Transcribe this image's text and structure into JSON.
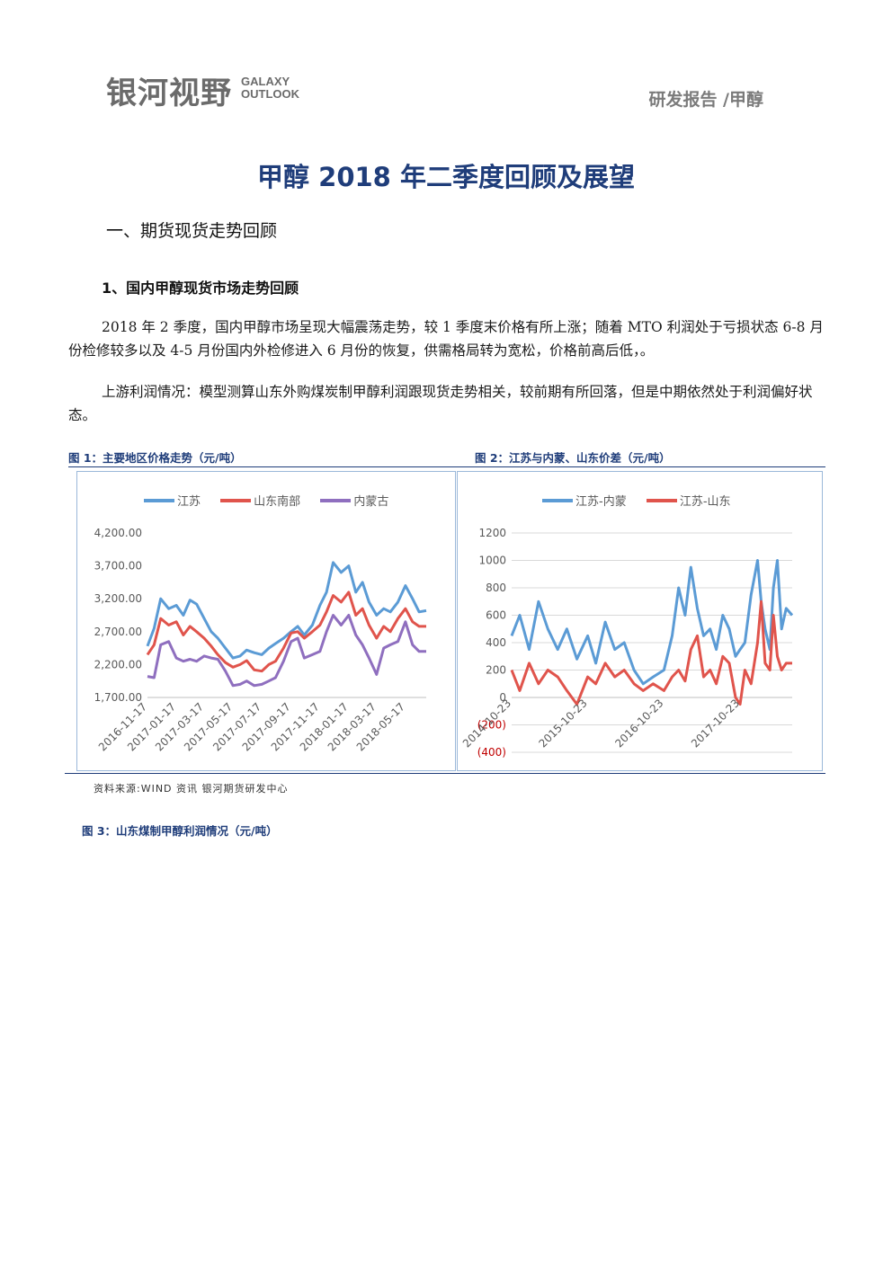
{
  "header": {
    "logo_cn": "银河视野",
    "logo_en_line1": "GALAXY",
    "logo_en_line2": "OUTLOOK",
    "section": "研发报告 /甲醇"
  },
  "title": "甲醇 2018 年二季度回顾及展望",
  "section_heading": "一、期货现货走势回顾",
  "subsection_heading": "1、国内甲醇现货市场走势回顾",
  "paragraphs": [
    "2018 年 2 季度，国内甲醇市场呈现大幅震荡走势，较 1 季度末价格有所上涨；随着 MTO 利润处于亏损状态 6-8 月份检修较多以及 4-5 月份国内外检修进入 6 月份的恢复，供需格局转为宽松，价格前高后低，。",
    "上游利润情况：模型测算山东外购煤炭制甲醇利润跟现货走势相关，较前期有所回落，但是中期依然处于利润偏好状态。"
  ],
  "figure1_caption": "图 1：主要地区价格走势（元/吨）",
  "figure2_caption": "图 2：江苏与内蒙、山东价差（元/吨）",
  "figure3_caption": "图 3：山东煤制甲醇利润情况（元/吨）",
  "source": "资料来源:WIND 资讯  银河期货研发中心",
  "chart_data": [
    {
      "type": "line",
      "ylim": [
        1700,
        4200
      ],
      "yticks": [
        "4,200.00",
        "3,700.00",
        "3,200.00",
        "2,700.00",
        "2,200.00",
        "1,700.00"
      ],
      "ytick_values": [
        4200,
        3700,
        3200,
        2700,
        2200,
        1700
      ],
      "xticks": [
        "2016-11-17",
        "2017-01-17",
        "2017-03-17",
        "2017-05-17",
        "2017-07-17",
        "2017-09-17",
        "2017-11-17",
        "2018-01-17",
        "2018-03-17",
        "2018-05-17"
      ],
      "x_range": [
        "2016-11-17",
        "2018-06-30"
      ],
      "series": [
        {
          "name": "江苏",
          "color": "#5b9bd5",
          "points": [
            [
              "2016-11-17",
              2480
            ],
            [
              "2016-12-01",
              2750
            ],
            [
              "2016-12-15",
              3200
            ],
            [
              "2017-01-01",
              3050
            ],
            [
              "2017-01-17",
              3100
            ],
            [
              "2017-02-01",
              2950
            ],
            [
              "2017-02-15",
              3180
            ],
            [
              "2017-03-01",
              3120
            ],
            [
              "2017-03-17",
              2900
            ],
            [
              "2017-04-01",
              2700
            ],
            [
              "2017-04-15",
              2600
            ],
            [
              "2017-05-01",
              2450
            ],
            [
              "2017-05-17",
              2300
            ],
            [
              "2017-06-01",
              2330
            ],
            [
              "2017-06-15",
              2420
            ],
            [
              "2017-07-01",
              2380
            ],
            [
              "2017-07-17",
              2350
            ],
            [
              "2017-08-01",
              2450
            ],
            [
              "2017-08-15",
              2520
            ],
            [
              "2017-09-01",
              2600
            ],
            [
              "2017-09-17",
              2700
            ],
            [
              "2017-10-01",
              2780
            ],
            [
              "2017-10-15",
              2650
            ],
            [
              "2017-11-01",
              2800
            ],
            [
              "2017-11-17",
              3100
            ],
            [
              "2017-12-01",
              3300
            ],
            [
              "2017-12-15",
              3750
            ],
            [
              "2018-01-01",
              3600
            ],
            [
              "2018-01-17",
              3700
            ],
            [
              "2018-02-01",
              3300
            ],
            [
              "2018-02-15",
              3450
            ],
            [
              "2018-03-01",
              3150
            ],
            [
              "2018-03-17",
              2950
            ],
            [
              "2018-04-01",
              3050
            ],
            [
              "2018-04-15",
              3000
            ],
            [
              "2018-05-01",
              3150
            ],
            [
              "2018-05-17",
              3400
            ],
            [
              "2018-06-01",
              3200
            ],
            [
              "2018-06-15",
              3000
            ],
            [
              "2018-06-30",
              3020
            ]
          ]
        },
        {
          "name": "山东南部",
          "color": "#e0544c",
          "points": [
            [
              "2016-11-17",
              2350
            ],
            [
              "2016-12-01",
              2500
            ],
            [
              "2016-12-15",
              2900
            ],
            [
              "2017-01-01",
              2800
            ],
            [
              "2017-01-17",
              2850
            ],
            [
              "2017-02-01",
              2650
            ],
            [
              "2017-02-15",
              2780
            ],
            [
              "2017-03-01",
              2700
            ],
            [
              "2017-03-17",
              2600
            ],
            [
              "2017-04-01",
              2480
            ],
            [
              "2017-04-15",
              2350
            ],
            [
              "2017-05-01",
              2230
            ],
            [
              "2017-05-17",
              2160
            ],
            [
              "2017-06-01",
              2200
            ],
            [
              "2017-06-15",
              2260
            ],
            [
              "2017-07-01",
              2120
            ],
            [
              "2017-07-17",
              2100
            ],
            [
              "2017-08-01",
              2200
            ],
            [
              "2017-08-15",
              2250
            ],
            [
              "2017-09-01",
              2450
            ],
            [
              "2017-09-17",
              2680
            ],
            [
              "2017-10-01",
              2700
            ],
            [
              "2017-10-15",
              2600
            ],
            [
              "2017-11-01",
              2700
            ],
            [
              "2017-11-17",
              2800
            ],
            [
              "2017-12-01",
              3000
            ],
            [
              "2017-12-15",
              3250
            ],
            [
              "2018-01-01",
              3150
            ],
            [
              "2018-01-17",
              3300
            ],
            [
              "2018-02-01",
              2950
            ],
            [
              "2018-02-15",
              3050
            ],
            [
              "2018-03-01",
              2800
            ],
            [
              "2018-03-17",
              2600
            ],
            [
              "2018-04-01",
              2780
            ],
            [
              "2018-04-15",
              2700
            ],
            [
              "2018-05-01",
              2900
            ],
            [
              "2018-05-17",
              3050
            ],
            [
              "2018-06-01",
              2850
            ],
            [
              "2018-06-15",
              2780
            ],
            [
              "2018-06-30",
              2780
            ]
          ]
        },
        {
          "name": "内蒙古",
          "color": "#8f6fbf",
          "points": [
            [
              "2016-11-17",
              2020
            ],
            [
              "2016-12-01",
              2000
            ],
            [
              "2016-12-15",
              2500
            ],
            [
              "2017-01-01",
              2550
            ],
            [
              "2017-01-17",
              2300
            ],
            [
              "2017-02-01",
              2250
            ],
            [
              "2017-02-15",
              2280
            ],
            [
              "2017-03-01",
              2250
            ],
            [
              "2017-03-17",
              2330
            ],
            [
              "2017-04-01",
              2300
            ],
            [
              "2017-04-15",
              2280
            ],
            [
              "2017-05-01",
              2100
            ],
            [
              "2017-05-17",
              1880
            ],
            [
              "2017-06-01",
              1900
            ],
            [
              "2017-06-15",
              1950
            ],
            [
              "2017-07-01",
              1880
            ],
            [
              "2017-07-17",
              1900
            ],
            [
              "2017-08-01",
              1950
            ],
            [
              "2017-08-15",
              2000
            ],
            [
              "2017-09-01",
              2250
            ],
            [
              "2017-09-17",
              2550
            ],
            [
              "2017-10-01",
              2600
            ],
            [
              "2017-10-15",
              2300
            ],
            [
              "2017-11-01",
              2350
            ],
            [
              "2017-11-17",
              2400
            ],
            [
              "2017-12-01",
              2700
            ],
            [
              "2017-12-15",
              2950
            ],
            [
              "2018-01-01",
              2800
            ],
            [
              "2018-01-17",
              2950
            ],
            [
              "2018-02-01",
              2650
            ],
            [
              "2018-02-15",
              2500
            ],
            [
              "2018-03-01",
              2300
            ],
            [
              "2018-03-17",
              2050
            ],
            [
              "2018-04-01",
              2450
            ],
            [
              "2018-04-15",
              2500
            ],
            [
              "2018-05-01",
              2550
            ],
            [
              "2018-05-17",
              2850
            ],
            [
              "2018-06-01",
              2500
            ],
            [
              "2018-06-15",
              2400
            ],
            [
              "2018-06-30",
              2400
            ]
          ]
        }
      ]
    },
    {
      "type": "line",
      "ylim": [
        -400,
        1200
      ],
      "yticks": [
        "1200",
        "1000",
        "800",
        "600",
        "400",
        "200",
        "0",
        "(200)",
        "(400)"
      ],
      "ytick_values": [
        1200,
        1000,
        800,
        600,
        400,
        200,
        0,
        -200,
        -400
      ],
      "xticks": [
        "2014-10-23",
        "2015-10-23",
        "2016-10-23",
        "2017-10-23"
      ],
      "x_range": [
        "2014-10-23",
        "2018-06-30"
      ],
      "series": [
        {
          "name": "江苏-内蒙",
          "color": "#5b9bd5",
          "points": [
            [
              "2014-10-23",
              450
            ],
            [
              "2014-12-01",
              600
            ],
            [
              "2015-01-15",
              350
            ],
            [
              "2015-03-01",
              700
            ],
            [
              "2015-04-15",
              500
            ],
            [
              "2015-06-01",
              350
            ],
            [
              "2015-07-15",
              500
            ],
            [
              "2015-09-01",
              280
            ],
            [
              "2015-10-23",
              450
            ],
            [
              "2015-12-01",
              250
            ],
            [
              "2016-01-15",
              550
            ],
            [
              "2016-03-01",
              350
            ],
            [
              "2016-04-15",
              400
            ],
            [
              "2016-06-01",
              200
            ],
            [
              "2016-07-15",
              100
            ],
            [
              "2016-09-01",
              150
            ],
            [
              "2016-10-23",
              200
            ],
            [
              "2016-12-01",
              450
            ],
            [
              "2017-01-01",
              800
            ],
            [
              "2017-02-01",
              600
            ],
            [
              "2017-03-01",
              950
            ],
            [
              "2017-04-01",
              650
            ],
            [
              "2017-05-01",
              450
            ],
            [
              "2017-06-01",
              500
            ],
            [
              "2017-07-01",
              350
            ],
            [
              "2017-08-01",
              600
            ],
            [
              "2017-09-01",
              500
            ],
            [
              "2017-10-01",
              300
            ],
            [
              "2017-10-23",
              350
            ],
            [
              "2017-11-15",
              400
            ],
            [
              "2017-12-15",
              750
            ],
            [
              "2018-01-15",
              1000
            ],
            [
              "2018-02-01",
              700
            ],
            [
              "2018-02-20",
              500
            ],
            [
              "2018-03-15",
              350
            ],
            [
              "2018-04-01",
              800
            ],
            [
              "2018-04-20",
              1000
            ],
            [
              "2018-05-10",
              500
            ],
            [
              "2018-06-01",
              650
            ],
            [
              "2018-06-30",
              600
            ]
          ]
        },
        {
          "name": "江苏-山东",
          "color": "#e0544c",
          "points": [
            [
              "2014-10-23",
              200
            ],
            [
              "2014-12-01",
              50
            ],
            [
              "2015-01-15",
              250
            ],
            [
              "2015-03-01",
              100
            ],
            [
              "2015-04-15",
              200
            ],
            [
              "2015-06-01",
              150
            ],
            [
              "2015-07-15",
              50
            ],
            [
              "2015-09-01",
              -50
            ],
            [
              "2015-10-23",
              150
            ],
            [
              "2015-12-01",
              100
            ],
            [
              "2016-01-15",
              250
            ],
            [
              "2016-03-01",
              150
            ],
            [
              "2016-04-15",
              200
            ],
            [
              "2016-06-01",
              100
            ],
            [
              "2016-07-15",
              50
            ],
            [
              "2016-09-01",
              100
            ],
            [
              "2016-10-23",
              50
            ],
            [
              "2016-12-01",
              150
            ],
            [
              "2017-01-01",
              200
            ],
            [
              "2017-02-01",
              120
            ],
            [
              "2017-03-01",
              350
            ],
            [
              "2017-04-01",
              450
            ],
            [
              "2017-05-01",
              150
            ],
            [
              "2017-06-01",
              200
            ],
            [
              "2017-07-01",
              100
            ],
            [
              "2017-08-01",
              300
            ],
            [
              "2017-09-01",
              250
            ],
            [
              "2017-10-01",
              0
            ],
            [
              "2017-10-23",
              -50
            ],
            [
              "2017-11-15",
              200
            ],
            [
              "2017-12-15",
              100
            ],
            [
              "2018-01-15",
              400
            ],
            [
              "2018-02-01",
              700
            ],
            [
              "2018-02-20",
              250
            ],
            [
              "2018-03-15",
              200
            ],
            [
              "2018-04-01",
              600
            ],
            [
              "2018-04-20",
              300
            ],
            [
              "2018-05-10",
              200
            ],
            [
              "2018-06-01",
              250
            ],
            [
              "2018-06-30",
              250
            ]
          ]
        }
      ]
    }
  ]
}
